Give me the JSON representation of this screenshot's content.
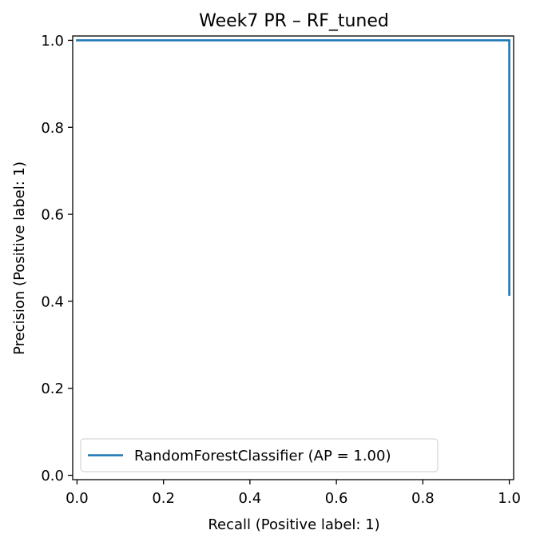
{
  "chart_data": {
    "type": "line",
    "title": "Week7 PR – RF_tuned",
    "xlabel": "Recall (Positive label: 1)",
    "ylabel": "Precision (Positive label: 1)",
    "xlim": [
      -0.01,
      1.01
    ],
    "ylim": [
      -0.01,
      1.01
    ],
    "xticks": [
      0.0,
      0.2,
      0.4,
      0.6,
      0.8,
      1.0
    ],
    "yticks": [
      0.0,
      0.2,
      0.4,
      0.6,
      0.8,
      1.0
    ],
    "xtick_labels": [
      "0.0",
      "0.2",
      "0.4",
      "0.6",
      "0.8",
      "1.0"
    ],
    "ytick_labels": [
      "0.0",
      "0.2",
      "0.4",
      "0.6",
      "0.8",
      "1.0"
    ],
    "grid": false,
    "legend": "lower-left",
    "series": [
      {
        "name": "RandomForestClassifier (AP = 1.00)",
        "color": "#1f77b4",
        "x": [
          0.0,
          1.0,
          1.0
        ],
        "y": [
          1.0,
          1.0,
          0.415
        ]
      }
    ]
  }
}
